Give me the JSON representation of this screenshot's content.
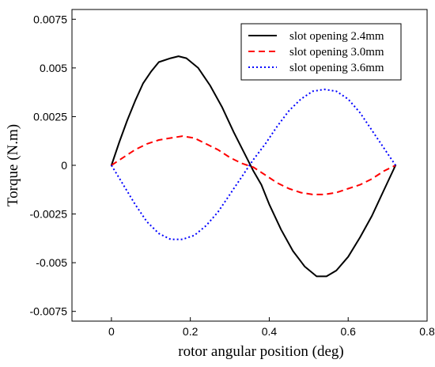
{
  "chart_data": {
    "type": "line",
    "xlabel": "rotor angular position (deg)",
    "ylabel": "Torque (N.m)",
    "xlim": [
      -0.1,
      0.8
    ],
    "ylim": [
      -0.008,
      0.008
    ],
    "x_ticks": [
      0,
      0.2,
      0.4,
      0.6,
      0.8
    ],
    "x_tick_labels": [
      "0",
      "0.2",
      "0.4",
      "0.6",
      "0.8"
    ],
    "y_ticks": [
      0.0075,
      0.005,
      0.0025,
      0,
      -0.0025,
      -0.005,
      -0.0075
    ],
    "y_tick_labels": [
      "0.0075",
      "0.005",
      "0.0025",
      "0",
      "-0.0025",
      "-0.005",
      "-0.0075"
    ],
    "grid": false,
    "legend_position": "top-right",
    "series": [
      {
        "name": "slot opening 2.4mm",
        "color": "#000000",
        "style": "solid",
        "points": [
          [
            0.0,
            0.0
          ],
          [
            0.02,
            0.0012
          ],
          [
            0.04,
            0.0023
          ],
          [
            0.06,
            0.0033
          ],
          [
            0.08,
            0.0042
          ],
          [
            0.1,
            0.0048
          ],
          [
            0.12,
            0.0053
          ],
          [
            0.15,
            0.0055
          ],
          [
            0.17,
            0.0056
          ],
          [
            0.19,
            0.0055
          ],
          [
            0.22,
            0.005
          ],
          [
            0.25,
            0.0041
          ],
          [
            0.28,
            0.003
          ],
          [
            0.31,
            0.0017
          ],
          [
            0.34,
            0.0005
          ],
          [
            0.36,
            -0.0003
          ],
          [
            0.38,
            -0.001
          ],
          [
            0.4,
            -0.002
          ],
          [
            0.43,
            -0.0033
          ],
          [
            0.46,
            -0.0044
          ],
          [
            0.49,
            -0.0052
          ],
          [
            0.52,
            -0.0057
          ],
          [
            0.545,
            -0.0057
          ],
          [
            0.57,
            -0.0054
          ],
          [
            0.6,
            -0.0047
          ],
          [
            0.63,
            -0.0037
          ],
          [
            0.66,
            -0.0026
          ],
          [
            0.69,
            -0.0013
          ],
          [
            0.72,
            0.0
          ]
        ]
      },
      {
        "name": "slot opening 3.0mm",
        "color": "#ff0000",
        "style": "dashed",
        "points": [
          [
            0.0,
            0.0
          ],
          [
            0.03,
            0.0004
          ],
          [
            0.06,
            0.0008
          ],
          [
            0.09,
            0.0011
          ],
          [
            0.12,
            0.0013
          ],
          [
            0.15,
            0.0014
          ],
          [
            0.18,
            0.0015
          ],
          [
            0.21,
            0.0014
          ],
          [
            0.24,
            0.0011
          ],
          [
            0.27,
            0.0008
          ],
          [
            0.3,
            0.0004
          ],
          [
            0.33,
            0.0001
          ],
          [
            0.36,
            -0.0001
          ],
          [
            0.39,
            -0.0005
          ],
          [
            0.42,
            -0.0009
          ],
          [
            0.45,
            -0.0012
          ],
          [
            0.48,
            -0.0014
          ],
          [
            0.51,
            -0.0015
          ],
          [
            0.54,
            -0.0015
          ],
          [
            0.57,
            -0.0014
          ],
          [
            0.6,
            -0.0012
          ],
          [
            0.63,
            -0.001
          ],
          [
            0.66,
            -0.0007
          ],
          [
            0.69,
            -0.0003
          ],
          [
            0.72,
            0.0
          ]
        ]
      },
      {
        "name": "slot opening 3.6mm",
        "color": "#0000ff",
        "style": "dotted",
        "points": [
          [
            0.0,
            0.0
          ],
          [
            0.03,
            -0.001
          ],
          [
            0.06,
            -0.002
          ],
          [
            0.09,
            -0.0029
          ],
          [
            0.12,
            -0.0035
          ],
          [
            0.15,
            -0.0038
          ],
          [
            0.18,
            -0.0038
          ],
          [
            0.21,
            -0.0036
          ],
          [
            0.24,
            -0.0031
          ],
          [
            0.27,
            -0.0024
          ],
          [
            0.3,
            -0.0015
          ],
          [
            0.33,
            -0.0006
          ],
          [
            0.36,
            0.0003
          ],
          [
            0.39,
            0.0011
          ],
          [
            0.42,
            0.002
          ],
          [
            0.45,
            0.0028
          ],
          [
            0.48,
            0.0034
          ],
          [
            0.51,
            0.0038
          ],
          [
            0.54,
            0.0039
          ],
          [
            0.57,
            0.0038
          ],
          [
            0.6,
            0.0034
          ],
          [
            0.63,
            0.0027
          ],
          [
            0.66,
            0.0018
          ],
          [
            0.69,
            0.0009
          ],
          [
            0.72,
            0.0
          ]
        ]
      }
    ]
  }
}
